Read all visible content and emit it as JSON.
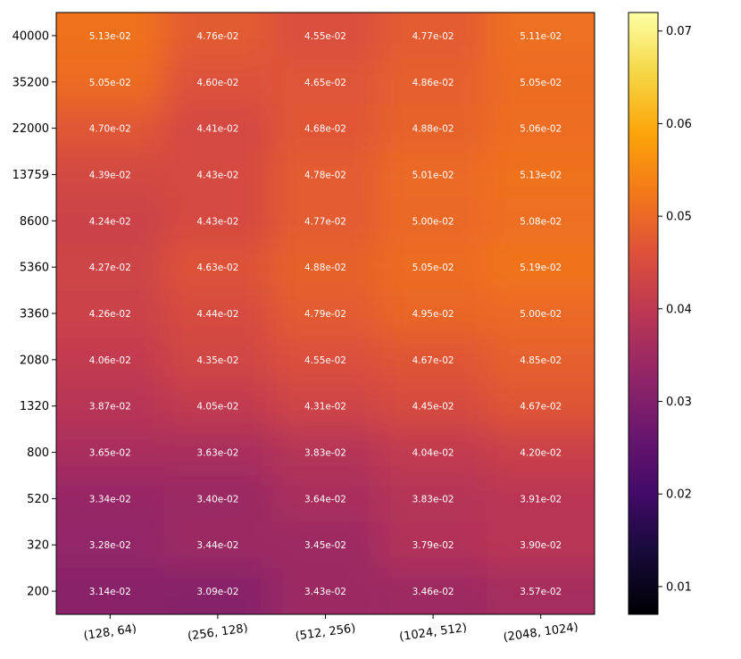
{
  "chart_data": {
    "type": "heatmap",
    "title": "",
    "xlabel": "",
    "ylabel": "",
    "colormap": "inferno",
    "vmin": 0.007,
    "vmax": 0.072,
    "x_categories": [
      "(128, 64)",
      "(256, 128)",
      "(512, 256)",
      "(1024, 512)",
      "(2048, 1024)"
    ],
    "y_categories": [
      "40000",
      "35200",
      "22000",
      "13759",
      "8600",
      "5360",
      "3360",
      "2080",
      "1320",
      "800",
      "520",
      "320",
      "200"
    ],
    "values": [
      [
        0.0513,
        0.0476,
        0.0455,
        0.0477,
        0.0511
      ],
      [
        0.0505,
        0.046,
        0.0465,
        0.0486,
        0.0505
      ],
      [
        0.047,
        0.0441,
        0.0468,
        0.0488,
        0.0506
      ],
      [
        0.0439,
        0.0443,
        0.0478,
        0.0501,
        0.0513
      ],
      [
        0.0424,
        0.0443,
        0.0477,
        0.05,
        0.0508
      ],
      [
        0.0427,
        0.0463,
        0.0488,
        0.0505,
        0.0519
      ],
      [
        0.0426,
        0.0444,
        0.0479,
        0.0495,
        0.05
      ],
      [
        0.0406,
        0.0435,
        0.0455,
        0.0467,
        0.0485
      ],
      [
        0.0387,
        0.0405,
        0.0431,
        0.0445,
        0.0467
      ],
      [
        0.0365,
        0.0363,
        0.0383,
        0.0404,
        0.042
      ],
      [
        0.0334,
        0.034,
        0.0364,
        0.0383,
        0.0391
      ],
      [
        0.0328,
        0.0344,
        0.0345,
        0.0379,
        0.039
      ],
      [
        0.0314,
        0.0309,
        0.0343,
        0.0346,
        0.0357
      ]
    ],
    "labels": [
      [
        "5.13e-02",
        "4.76e-02",
        "4.55e-02",
        "4.77e-02",
        "5.11e-02"
      ],
      [
        "5.05e-02",
        "4.60e-02",
        "4.65e-02",
        "4.86e-02",
        "5.05e-02"
      ],
      [
        "4.70e-02",
        "4.41e-02",
        "4.68e-02",
        "4.88e-02",
        "5.06e-02"
      ],
      [
        "4.39e-02",
        "4.43e-02",
        "4.78e-02",
        "5.01e-02",
        "5.13e-02"
      ],
      [
        "4.24e-02",
        "4.43e-02",
        "4.77e-02",
        "5.00e-02",
        "5.08e-02"
      ],
      [
        "4.27e-02",
        "4.63e-02",
        "4.88e-02",
        "5.05e-02",
        "5.19e-02"
      ],
      [
        "4.26e-02",
        "4.44e-02",
        "4.79e-02",
        "4.95e-02",
        "5.00e-02"
      ],
      [
        "4.06e-02",
        "4.35e-02",
        "4.55e-02",
        "4.67e-02",
        "4.85e-02"
      ],
      [
        "3.87e-02",
        "4.05e-02",
        "4.31e-02",
        "4.45e-02",
        "4.67e-02"
      ],
      [
        "3.65e-02",
        "3.63e-02",
        "3.83e-02",
        "4.04e-02",
        "4.20e-02"
      ],
      [
        "3.34e-02",
        "3.40e-02",
        "3.64e-02",
        "3.83e-02",
        "3.91e-02"
      ],
      [
        "3.28e-02",
        "3.44e-02",
        "3.45e-02",
        "3.79e-02",
        "3.90e-02"
      ],
      [
        "3.14e-02",
        "3.09e-02",
        "3.43e-02",
        "3.46e-02",
        "3.57e-02"
      ]
    ],
    "colorbar": {
      "ticks": [
        0.01,
        0.02,
        0.03,
        0.04,
        0.05,
        0.06,
        0.07
      ],
      "tick_labels": [
        "0.01",
        "0.02",
        "0.03",
        "0.04",
        "0.05",
        "0.06",
        "0.07"
      ]
    }
  }
}
